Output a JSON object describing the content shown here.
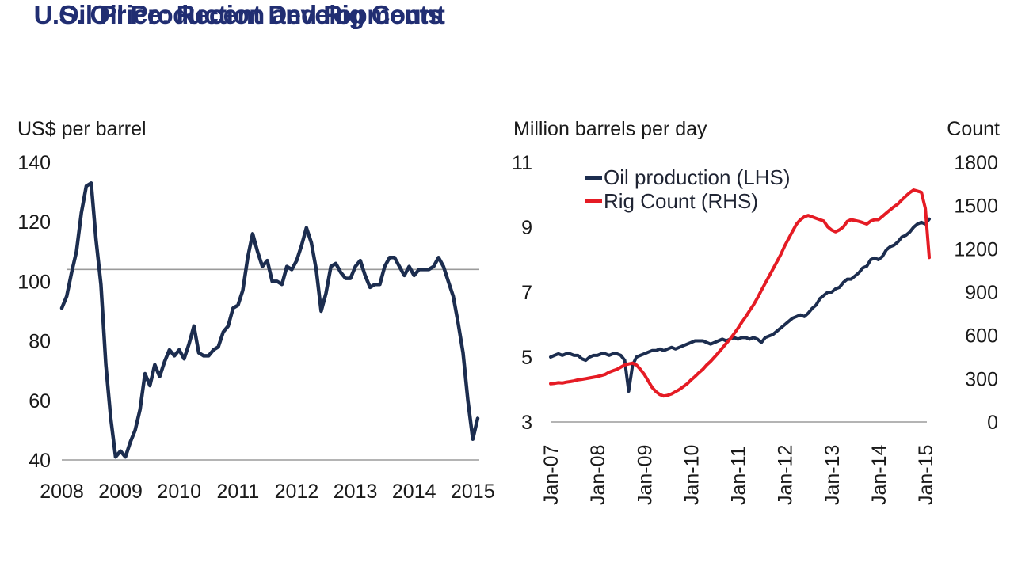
{
  "colors": {
    "title_navy": "#212e72",
    "line_navy": "#1c2d4f",
    "line_red": "#e51b24",
    "gridline_gray": "#9b9b9b",
    "axis_text": "#1a1a1a"
  },
  "chart_data": [
    {
      "type": "line",
      "title": "Oil Price: Recent Developments",
      "ylabel": "US$ per barrel",
      "xlabel": "",
      "ylim": [
        40,
        140
      ],
      "y_ticks": [
        140,
        120,
        100,
        80,
        60,
        40
      ],
      "x_tick_labels": [
        "2008",
        "2009",
        "2010",
        "2011",
        "2012",
        "2013",
        "2014",
        "2015"
      ],
      "reference_line": 104,
      "grid": "baseline and single reference line only",
      "legend_position": "none",
      "x_start": "2008-01",
      "frequency": "monthly",
      "series": [
        {
          "name": "Oil price (US$ per barrel)",
          "color": "#1c2d4f",
          "values": [
            91,
            95,
            103,
            110,
            123,
            132,
            133,
            114,
            99,
            72,
            54,
            41,
            43,
            41,
            46,
            50,
            57,
            69,
            65,
            72,
            68,
            73,
            77,
            75,
            77,
            74,
            79,
            85,
            76,
            75,
            75,
            77,
            78,
            83,
            85,
            91,
            92,
            97,
            108,
            116,
            110,
            105,
            107,
            100,
            100,
            99,
            105,
            104,
            107,
            112,
            118,
            113,
            104,
            90,
            96,
            105,
            106,
            103,
            101,
            101,
            105,
            107,
            102,
            98,
            99,
            99,
            105,
            108,
            108,
            105,
            102,
            105,
            102,
            104,
            104,
            104,
            105,
            108,
            105,
            100,
            95,
            86,
            76,
            60,
            47,
            54
          ]
        }
      ]
    },
    {
      "type": "line",
      "title": "U.S. Oil Production and Rig Count",
      "ylabel_left": "Million barrels per day",
      "ylabel_right": "Count",
      "ylim_left": [
        3,
        11
      ],
      "ylim_right": [
        0,
        1800
      ],
      "y_ticks_left": [
        11,
        9,
        7,
        5,
        3
      ],
      "y_ticks_right": [
        1800,
        1500,
        1200,
        900,
        600,
        300,
        0
      ],
      "x_tick_labels": [
        "Jan-07",
        "Jan-08",
        "Jan-09",
        "Jan-10",
        "Jan-11",
        "Jan-12",
        "Jan-13",
        "Jan-14",
        "Jan-15"
      ],
      "grid": "baseline only",
      "legend_position": "top-left inside plot",
      "x_start": "2007-01",
      "frequency": "monthly",
      "series": [
        {
          "name": "Oil production (LHS)",
          "axis": "left",
          "color": "#1c2d4f",
          "values": [
            5.0,
            5.05,
            5.1,
            5.05,
            5.1,
            5.1,
            5.05,
            5.05,
            4.95,
            4.9,
            5.0,
            5.05,
            5.05,
            5.1,
            5.1,
            5.05,
            5.1,
            5.1,
            5.05,
            4.9,
            3.95,
            4.75,
            5.0,
            5.05,
            5.1,
            5.15,
            5.2,
            5.2,
            5.25,
            5.2,
            5.25,
            5.3,
            5.25,
            5.3,
            5.35,
            5.4,
            5.45,
            5.5,
            5.5,
            5.5,
            5.45,
            5.4,
            5.45,
            5.5,
            5.55,
            5.5,
            5.55,
            5.6,
            5.55,
            5.6,
            5.6,
            5.55,
            5.6,
            5.55,
            5.45,
            5.6,
            5.65,
            5.7,
            5.8,
            5.9,
            6.0,
            6.1,
            6.2,
            6.25,
            6.3,
            6.25,
            6.35,
            6.5,
            6.6,
            6.8,
            6.9,
            7.0,
            7.0,
            7.1,
            7.15,
            7.3,
            7.4,
            7.4,
            7.5,
            7.6,
            7.75,
            7.8,
            8.0,
            8.05,
            8.0,
            8.1,
            8.3,
            8.4,
            8.45,
            8.55,
            8.7,
            8.75,
            8.85,
            9.0,
            9.1,
            9.15,
            9.1,
            9.25
          ]
        },
        {
          "name": "Rig Count (RHS)",
          "axis": "right",
          "color": "#e51b24",
          "values": [
            265,
            268,
            272,
            270,
            276,
            280,
            285,
            292,
            296,
            300,
            305,
            310,
            315,
            322,
            330,
            345,
            355,
            365,
            380,
            395,
            402,
            408,
            395,
            365,
            330,
            285,
            240,
            210,
            190,
            180,
            185,
            195,
            210,
            225,
            245,
            265,
            292,
            315,
            342,
            365,
            395,
            420,
            450,
            480,
            512,
            545,
            575,
            612,
            650,
            692,
            730,
            772,
            812,
            860,
            912,
            962,
            1012,
            1062,
            1112,
            1162,
            1222,
            1272,
            1322,
            1372,
            1402,
            1422,
            1432,
            1422,
            1412,
            1402,
            1392,
            1352,
            1330,
            1318,
            1332,
            1352,
            1390,
            1402,
            1396,
            1390,
            1382,
            1372,
            1392,
            1402,
            1402,
            1425,
            1448,
            1470,
            1492,
            1512,
            1540,
            1565,
            1590,
            1608,
            1600,
            1592,
            1480,
            1140
          ]
        }
      ]
    }
  ]
}
